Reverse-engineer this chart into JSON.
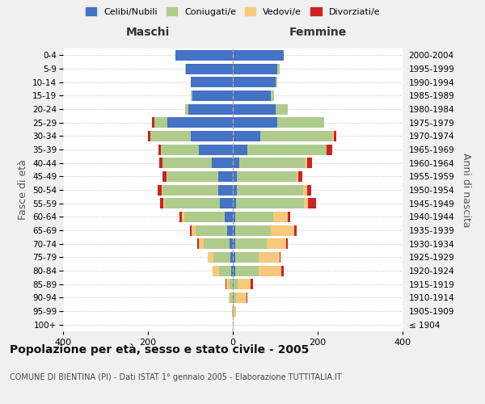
{
  "age_groups": [
    "100+",
    "95-99",
    "90-94",
    "85-89",
    "80-84",
    "75-79",
    "70-74",
    "65-69",
    "60-64",
    "55-59",
    "50-54",
    "45-49",
    "40-44",
    "35-39",
    "30-34",
    "25-29",
    "20-24",
    "15-19",
    "10-14",
    "5-9",
    "0-4"
  ],
  "birth_years": [
    "≤ 1904",
    "1905-1909",
    "1910-1914",
    "1915-1919",
    "1920-1924",
    "1925-1929",
    "1930-1934",
    "1935-1939",
    "1940-1944",
    "1945-1949",
    "1950-1954",
    "1955-1959",
    "1960-1964",
    "1965-1969",
    "1970-1974",
    "1975-1979",
    "1980-1984",
    "1985-1989",
    "1990-1994",
    "1995-1999",
    "2000-2004"
  ],
  "colors": {
    "celibe": "#4472C4",
    "coniugato": "#AECB8B",
    "vedovo": "#F5C87A",
    "divorziato": "#CC2222"
  },
  "maschi": {
    "celibe": [
      0,
      0,
      0,
      0,
      3,
      5,
      8,
      13,
      20,
      30,
      35,
      35,
      50,
      80,
      100,
      155,
      105,
      95,
      100,
      110,
      135
    ],
    "coniugato": [
      0,
      2,
      5,
      8,
      30,
      40,
      60,
      75,
      95,
      130,
      130,
      120,
      115,
      90,
      95,
      30,
      8,
      5,
      0,
      2,
      0
    ],
    "vedovo": [
      0,
      0,
      5,
      8,
      15,
      15,
      12,
      10,
      5,
      4,
      3,
      2,
      0,
      0,
      0,
      0,
      0,
      0,
      0,
      0,
      0
    ],
    "divorziato": [
      0,
      0,
      0,
      2,
      0,
      0,
      3,
      3,
      5,
      8,
      10,
      8,
      8,
      5,
      5,
      5,
      0,
      0,
      0,
      0,
      0
    ]
  },
  "femmine": {
    "celibe": [
      0,
      0,
      2,
      2,
      5,
      5,
      5,
      5,
      5,
      8,
      10,
      10,
      15,
      35,
      65,
      105,
      100,
      90,
      100,
      105,
      120
    ],
    "coniugato": [
      0,
      2,
      5,
      10,
      55,
      55,
      75,
      85,
      90,
      160,
      155,
      140,
      155,
      185,
      170,
      110,
      30,
      8,
      5,
      5,
      0
    ],
    "vedovo": [
      2,
      5,
      25,
      30,
      55,
      50,
      45,
      55,
      35,
      10,
      10,
      5,
      5,
      0,
      3,
      0,
      0,
      0,
      0,
      0,
      0
    ],
    "divorziato": [
      0,
      0,
      2,
      5,
      5,
      3,
      5,
      5,
      5,
      18,
      10,
      8,
      12,
      15,
      5,
      0,
      0,
      0,
      0,
      0,
      0
    ]
  },
  "title": "Popolazione per età, sesso e stato civile - 2005",
  "subtitle": "COMUNE DI BIENTINA (PI) - Dati ISTAT 1° gennaio 2005 - Elaborazione TUTTITALIA.IT",
  "ylabel_left": "Fasce di età",
  "ylabel_right": "Anni di nascita",
  "xlim": 400,
  "legend_labels": [
    "Celibi/Nubili",
    "Coniugati/e",
    "Vedovi/e",
    "Divorziati/e"
  ],
  "maschi_label": "Maschi",
  "femmine_label": "Femmine",
  "bg_color": "#F0F0F0",
  "plot_bg_color": "#FFFFFF",
  "grid_color": "#CCCCCC"
}
